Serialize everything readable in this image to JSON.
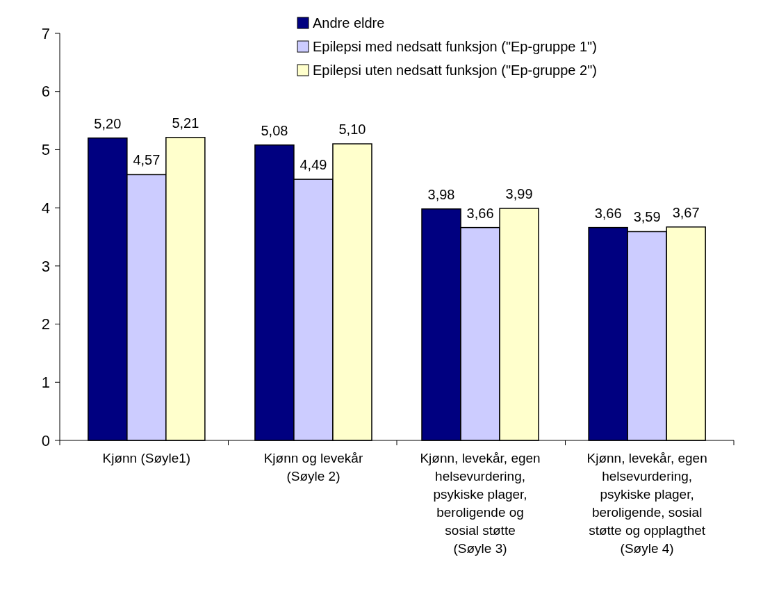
{
  "chart_data": {
    "type": "bar",
    "categories": [
      "Kjønn (Søyle1)",
      "Kjønn og levekår (Søyle 2)",
      "Kjønn, levekår, egen helsevurdering, psykiske plager, beroligende og sosial støtte (Søyle 3)",
      "Kjønn, levekår, egen helsevurdering, psykiske plager, beroligende, sosial støtte og opplagthet (Søyle 4)"
    ],
    "series": [
      {
        "name": "Andre eldre",
        "color": "#000080",
        "values": [
          5.2,
          5.08,
          3.98,
          3.66
        ],
        "value_labels": [
          "5,20",
          "5,08",
          "3,98",
          "3,66"
        ]
      },
      {
        "name": "Epilepsi med nedsatt funksjon (\"Ep-gruppe 1\")",
        "color": "#ccccff",
        "values": [
          4.57,
          4.49,
          3.66,
          3.59
        ],
        "value_labels": [
          "4,57",
          "4,49",
          "3,66",
          "3,59"
        ]
      },
      {
        "name": "Epilepsi uten nedsatt funksjon (\"Ep-gruppe 2\")",
        "color": "#ffffcc",
        "values": [
          5.21,
          5.1,
          3.99,
          3.67
        ],
        "value_labels": [
          "5,21",
          "5,10",
          "3,99",
          "3,67"
        ]
      }
    ],
    "ylim": [
      0,
      7
    ],
    "yticks": [
      0,
      1,
      2,
      3,
      4,
      5,
      6,
      7
    ],
    "grid": false,
    "legend": "top"
  }
}
